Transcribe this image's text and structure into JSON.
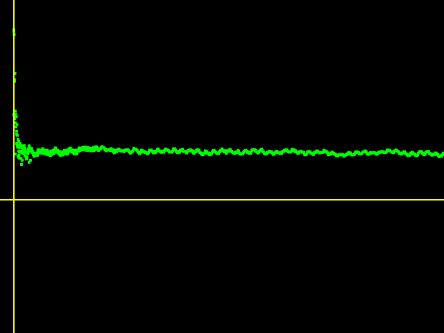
{
  "chart_data": {
    "type": "scatter",
    "title": "",
    "xlabel": "",
    "ylabel": "",
    "grid": false,
    "legend": "none",
    "xlim": [
      0,
      620
    ],
    "ylim": [
      -64,
      96
    ],
    "anchors": [
      [
        0,
        81
      ],
      [
        1,
        57
      ],
      [
        2,
        41
      ],
      [
        3,
        37
      ],
      [
        4,
        33
      ],
      [
        5,
        27
      ],
      [
        6,
        23
      ],
      [
        8,
        25
      ],
      [
        10,
        22
      ],
      [
        14,
        24
      ],
      [
        18,
        21
      ],
      [
        22,
        25
      ],
      [
        28,
        22
      ],
      [
        35,
        23
      ],
      [
        42,
        24
      ],
      [
        50,
        22
      ],
      [
        60,
        23
      ],
      [
        70,
        22
      ],
      [
        80,
        24
      ],
      [
        88,
        23
      ],
      [
        100,
        25
      ],
      [
        110,
        24
      ],
      [
        125,
        25
      ],
      [
        140,
        24
      ],
      [
        160,
        23
      ],
      [
        175,
        24
      ],
      [
        190,
        23
      ],
      [
        210,
        23
      ],
      [
        230,
        24
      ],
      [
        250,
        23
      ],
      [
        275,
        23
      ],
      [
        300,
        23
      ],
      [
        325,
        23
      ],
      [
        350,
        23
      ],
      [
        375,
        23
      ],
      [
        400,
        23
      ],
      [
        430,
        23
      ],
      [
        460,
        22
      ],
      [
        490,
        22
      ],
      [
        520,
        23
      ],
      [
        550,
        23
      ],
      [
        580,
        22
      ],
      [
        620,
        22
      ]
    ],
    "outliers": [
      [
        0,
        81
      ],
      [
        1,
        57
      ],
      [
        0,
        41
      ],
      [
        1,
        39
      ],
      [
        2,
        37
      ],
      [
        3,
        35
      ],
      [
        4,
        33
      ],
      [
        5,
        31
      ],
      [
        6,
        29
      ],
      [
        4,
        27
      ],
      [
        7,
        28
      ],
      [
        9,
        27
      ],
      [
        11,
        26
      ],
      [
        13,
        25
      ],
      [
        15,
        26
      ],
      [
        10,
        23
      ],
      [
        12,
        19
      ],
      [
        11,
        17
      ],
      [
        16,
        21
      ],
      [
        19,
        20
      ],
      [
        22,
        18
      ],
      [
        24,
        19
      ],
      [
        2,
        22
      ],
      [
        6,
        21
      ],
      [
        8,
        20
      ]
    ],
    "series_color": "#00FF00",
    "axis_color": "#FFFF00",
    "background_color": "#000000"
  }
}
